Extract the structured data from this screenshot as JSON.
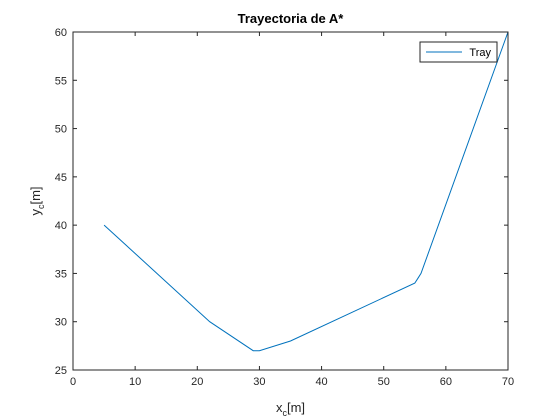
{
  "chart_data": {
    "type": "line",
    "title": "Trayectoria de A*",
    "xlabel": {
      "main": "x",
      "sub": "c",
      "unit": "[m]"
    },
    "ylabel": {
      "main": "y",
      "sub": "c",
      "unit": "[m]"
    },
    "xlim": [
      0,
      70
    ],
    "ylim": [
      25,
      60
    ],
    "xticks": [
      0,
      10,
      20,
      30,
      40,
      50,
      60,
      70
    ],
    "yticks": [
      25,
      30,
      35,
      40,
      45,
      50,
      55,
      60
    ],
    "grid": false,
    "legend_position": "top-right",
    "series": [
      {
        "name": "Tray",
        "color": "#0072bd",
        "x": [
          5,
          22,
          29,
          30,
          35,
          55,
          55.5,
          56,
          70
        ],
        "y": [
          40,
          30,
          27,
          27,
          28,
          34,
          34.5,
          35,
          60
        ]
      }
    ]
  }
}
